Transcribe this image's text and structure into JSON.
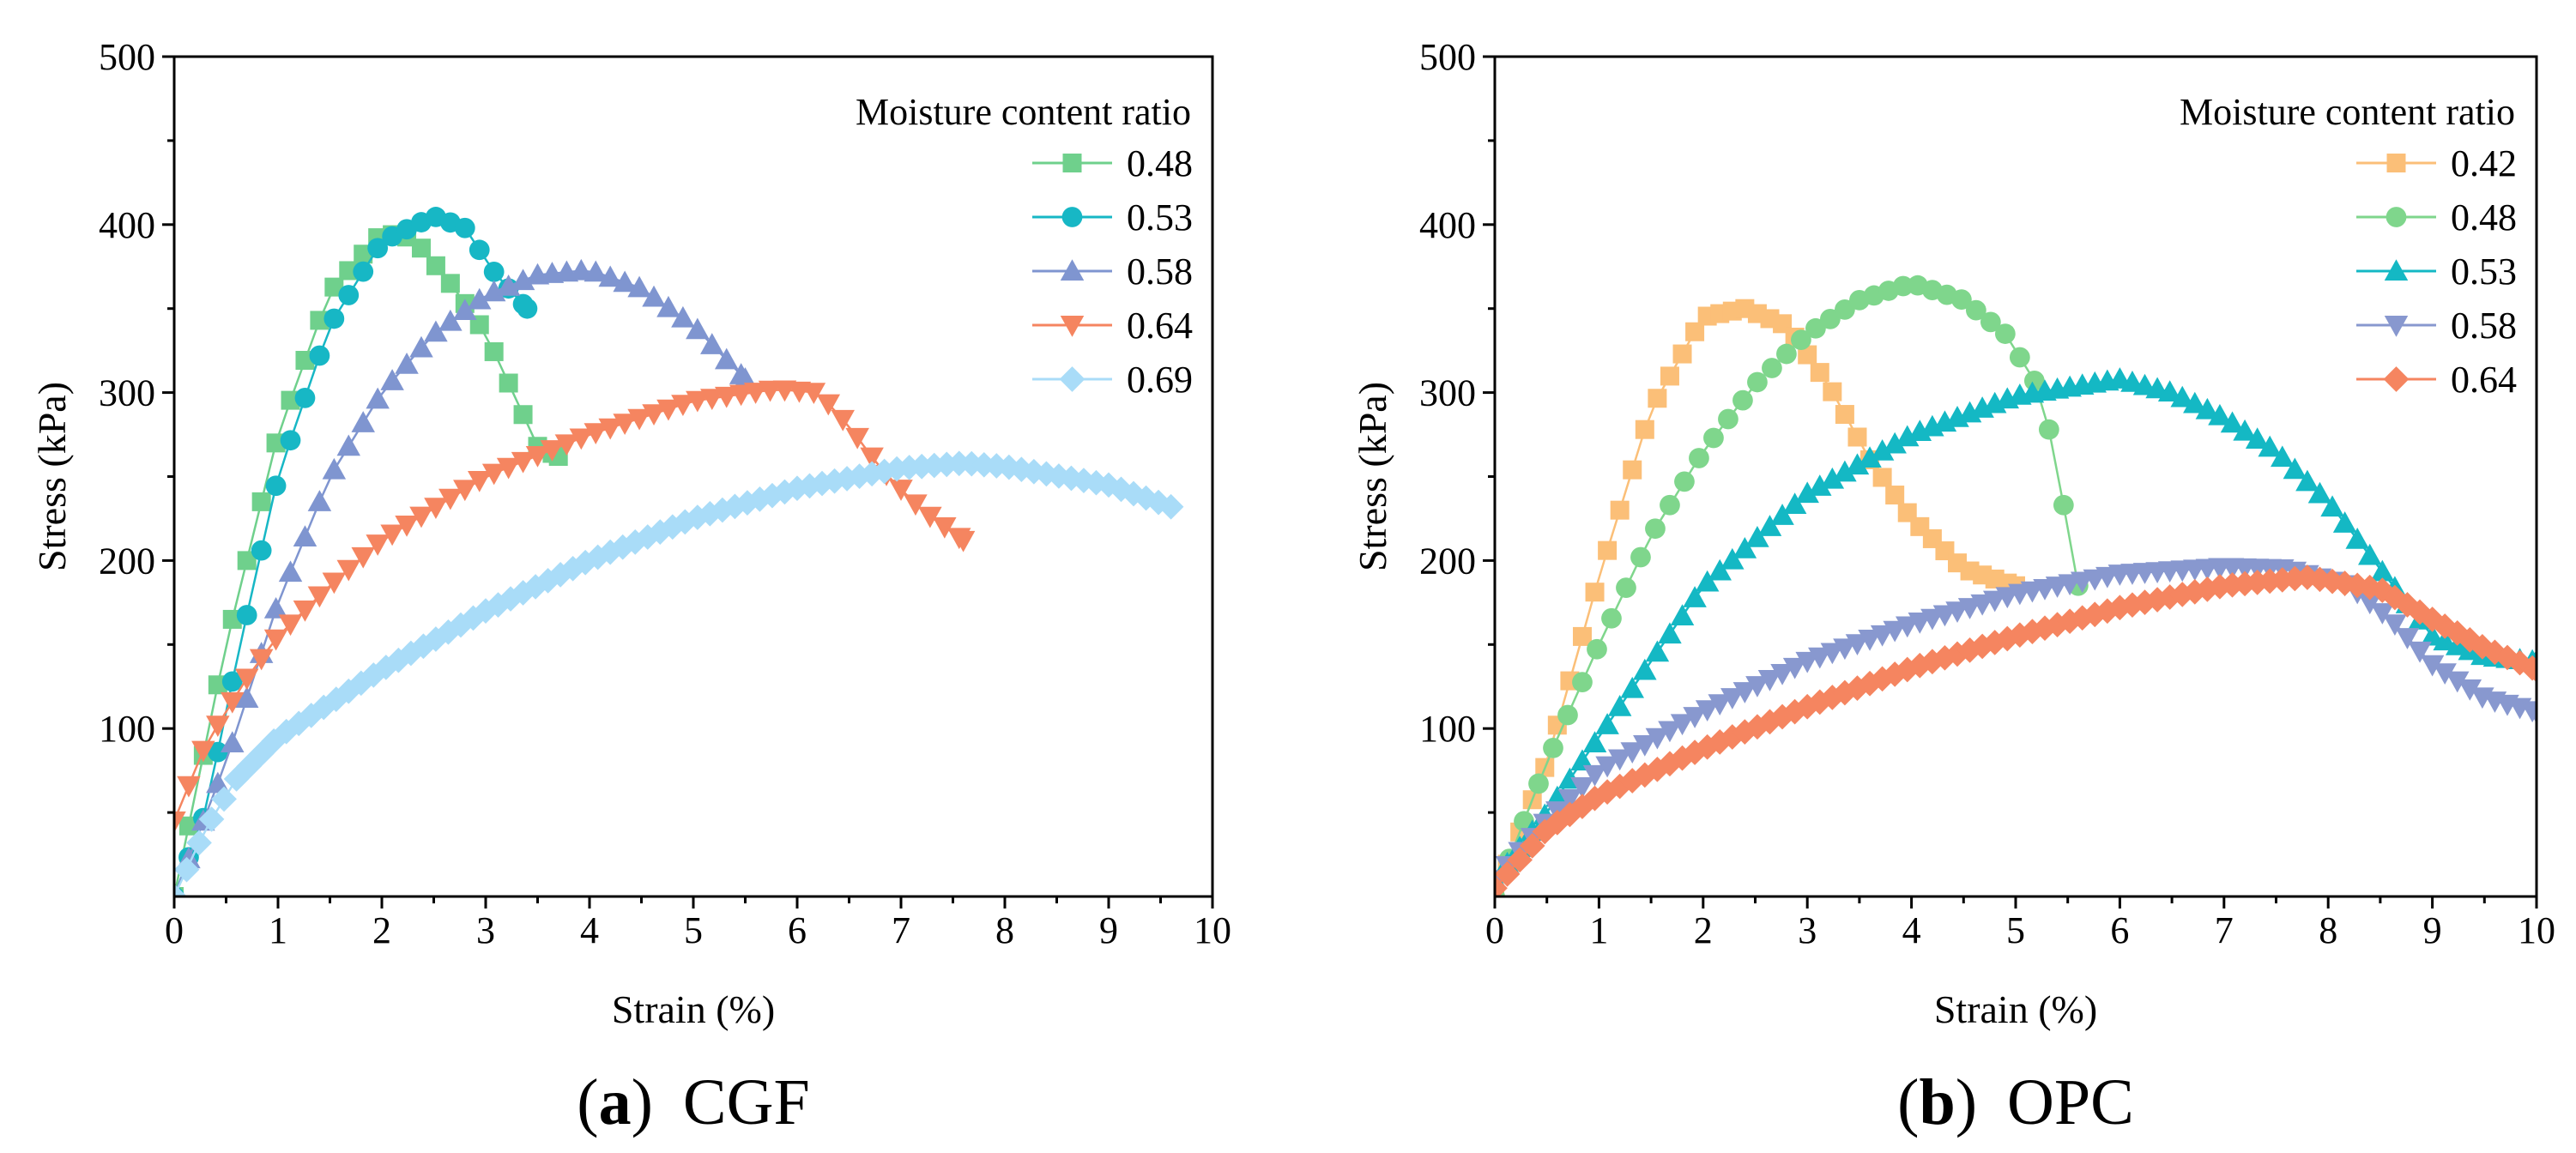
{
  "chart_data": [
    {
      "id": "cgf",
      "type": "scatter",
      "panel_letter": "(a)",
      "panel_name": "CGF",
      "xlabel": "Strain (%)",
      "ylabel": "Stress (kPa)",
      "xlim": [
        0,
        10
      ],
      "ylim": [
        0,
        500
      ],
      "xticks": [
        "0",
        "1",
        "2",
        "3",
        "4",
        "5",
        "6",
        "7",
        "8",
        "9",
        "10"
      ],
      "yticks": [
        "100",
        "200",
        "300",
        "400",
        "500"
      ],
      "legend_title": "Moisture content ratio",
      "legend_position": "top-right",
      "series": [
        {
          "name": "0.48",
          "color": "#6fd08c",
          "marker": "square",
          "step": 0.14,
          "curve": [
            [
              0,
              0
            ],
            [
              0.5,
              150
            ],
            [
              1.0,
              275
            ],
            [
              1.5,
              360
            ],
            [
              2.0,
              395
            ],
            [
              2.3,
              392
            ],
            [
              2.7,
              362
            ],
            [
              3.0,
              335
            ],
            [
              3.3,
              295
            ],
            [
              3.5,
              268
            ],
            [
              3.7,
              262
            ]
          ]
        },
        {
          "name": "0.53",
          "color": "#17b7c5",
          "marker": "circle",
          "step": 0.14,
          "curve": [
            [
              0,
              0
            ],
            [
              0.3,
              50
            ],
            [
              0.6,
              140
            ],
            [
              1.0,
              250
            ],
            [
              1.5,
              340
            ],
            [
              2.0,
              390
            ],
            [
              2.5,
              405
            ],
            [
              2.8,
              398
            ],
            [
              3.1,
              370
            ],
            [
              3.4,
              350
            ]
          ]
        },
        {
          "name": "0.58",
          "color": "#7f95d0",
          "marker": "triangle-up",
          "step": 0.14,
          "curve": [
            [
              0,
              0
            ],
            [
              0.5,
              80
            ],
            [
              1.0,
              175
            ],
            [
              1.5,
              250
            ],
            [
              2.0,
              300
            ],
            [
              2.5,
              335
            ],
            [
              3.0,
              358
            ],
            [
              3.5,
              370
            ],
            [
              4.0,
              373
            ],
            [
              4.5,
              362
            ],
            [
              5.0,
              340
            ],
            [
              5.5,
              308
            ]
          ]
        },
        {
          "name": "0.64",
          "color": "#f58560",
          "marker": "triangle-down",
          "step": 0.14,
          "curve": [
            [
              0,
              45
            ],
            [
              0.3,
              90
            ],
            [
              0.7,
              130
            ],
            [
              1.0,
              155
            ],
            [
              1.5,
              185
            ],
            [
              2.0,
              212
            ],
            [
              3.0,
              250
            ],
            [
              4.0,
              275
            ],
            [
              5.0,
              295
            ],
            [
              5.8,
              302
            ],
            [
              6.2,
              300
            ],
            [
              6.5,
              280
            ],
            [
              6.8,
              255
            ],
            [
              7.2,
              230
            ],
            [
              7.6,
              212
            ]
          ]
        },
        {
          "name": "0.69",
          "color": "#a9dcf8",
          "marker": "diamond",
          "step": 0.12,
          "curve": [
            [
              0,
              0
            ],
            [
              0.3,
              40
            ],
            [
              0.6,
              70
            ],
            [
              1.0,
              95
            ],
            [
              2.0,
              135
            ],
            [
              3.0,
              170
            ],
            [
              4.0,
              200
            ],
            [
              5.0,
              225
            ],
            [
              6.0,
              243
            ],
            [
              7.0,
              255
            ],
            [
              7.6,
              258
            ],
            [
              8.0,
              256
            ],
            [
              9.0,
              245
            ],
            [
              9.6,
              232
            ]
          ]
        }
      ]
    },
    {
      "id": "opc",
      "type": "scatter",
      "panel_letter": "(b)",
      "panel_name": "OPC",
      "xlabel": "Strain (%)",
      "ylabel": "Stress (kPa)",
      "xlim": [
        0,
        10
      ],
      "ylim": [
        0,
        500
      ],
      "xticks": [
        "0",
        "1",
        "2",
        "3",
        "4",
        "5",
        "6",
        "7",
        "8",
        "9",
        "10"
      ],
      "yticks": [
        "100",
        "200",
        "300",
        "400",
        "500"
      ],
      "legend_title": "Moisture content ratio",
      "legend_position": "top-right",
      "series": [
        {
          "name": "0.42",
          "color": "#fbbf78",
          "marker": "square",
          "step": 0.12,
          "curve": [
            [
              0,
              0
            ],
            [
              0.5,
              80
            ],
            [
              1.0,
              190
            ],
            [
              1.5,
              290
            ],
            [
              2.0,
              345
            ],
            [
              2.4,
              350
            ],
            [
              2.8,
              340
            ],
            [
              3.2,
              305
            ],
            [
              3.6,
              260
            ],
            [
              4.0,
              225
            ],
            [
              4.5,
              195
            ],
            [
              5.0,
              185
            ]
          ]
        },
        {
          "name": "0.48",
          "color": "#7fd68c",
          "marker": "circle",
          "step": 0.14,
          "curve": [
            [
              0,
              0
            ],
            [
              0.5,
              80
            ],
            [
              1.0,
              150
            ],
            [
              1.5,
              215
            ],
            [
              2.0,
              265
            ],
            [
              2.5,
              305
            ],
            [
              3.0,
              335
            ],
            [
              3.5,
              355
            ],
            [
              4.0,
              365
            ],
            [
              4.5,
              355
            ],
            [
              4.9,
              335
            ],
            [
              5.2,
              305
            ],
            [
              5.4,
              260
            ],
            [
              5.5,
              215
            ],
            [
              5.6,
              185
            ]
          ]
        },
        {
          "name": "0.53",
          "color": "#14b8c4",
          "marker": "triangle-up",
          "step": 0.12,
          "curve": [
            [
              0,
              10
            ],
            [
              0.5,
              50
            ],
            [
              1.0,
              95
            ],
            [
              1.5,
              140
            ],
            [
              2.0,
              185
            ],
            [
              3.0,
              240
            ],
            [
              4.0,
              275
            ],
            [
              5.0,
              298
            ],
            [
              6.0,
              308
            ],
            [
              6.5,
              300
            ],
            [
              7.0,
              285
            ],
            [
              7.5,
              265
            ],
            [
              8.0,
              235
            ],
            [
              8.5,
              195
            ],
            [
              9.0,
              155
            ],
            [
              9.5,
              143
            ],
            [
              10.0,
              140
            ]
          ]
        },
        {
          "name": "0.58",
          "color": "#8898cf",
          "marker": "triangle-down",
          "step": 0.12,
          "curve": [
            [
              0,
              10
            ],
            [
              0.5,
              45
            ],
            [
              1.0,
              75
            ],
            [
              2.0,
              110
            ],
            [
              3.0,
              140
            ],
            [
              4.0,
              162
            ],
            [
              5.0,
              180
            ],
            [
              6.0,
              192
            ],
            [
              7.0,
              196
            ],
            [
              7.6,
              195
            ],
            [
              8.2,
              185
            ],
            [
              8.6,
              165
            ],
            [
              9.0,
              138
            ],
            [
              9.5,
              118
            ],
            [
              10.0,
              110
            ]
          ]
        },
        {
          "name": "0.64",
          "color": "#f58560",
          "marker": "diamond",
          "step": 0.12,
          "curve": [
            [
              0,
              5
            ],
            [
              0.5,
              40
            ],
            [
              1.0,
              60
            ],
            [
              2.0,
              88
            ],
            [
              3.0,
              113
            ],
            [
              4.0,
              136
            ],
            [
              5.0,
              155
            ],
            [
              6.0,
              172
            ],
            [
              7.0,
              185
            ],
            [
              7.8,
              190
            ],
            [
              8.5,
              183
            ],
            [
              9.0,
              165
            ],
            [
              9.5,
              148
            ],
            [
              10.0,
              135
            ]
          ]
        }
      ]
    }
  ]
}
